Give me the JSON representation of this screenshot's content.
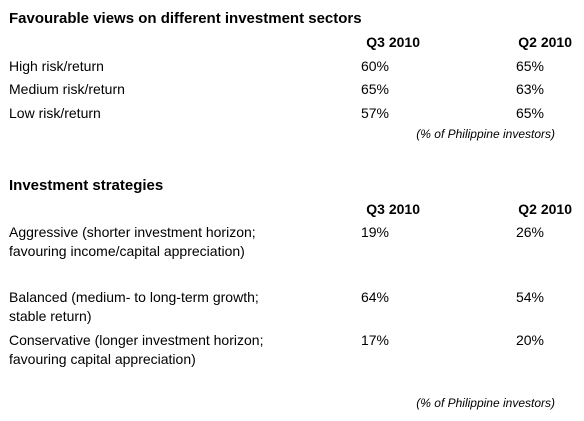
{
  "sections": [
    {
      "title": "Favourable views on different investment sectors",
      "columns": [
        "Q3 2010",
        "Q2 2010"
      ],
      "rows": [
        [
          "High risk/return",
          "60%",
          "65%"
        ],
        [
          "Medium risk/return",
          "65%",
          "63%"
        ],
        [
          "Low risk/return",
          "57%",
          "65%"
        ]
      ],
      "note": "(% of Philippine investors)"
    },
    {
      "title": "Investment strategies",
      "columns": [
        "Q3 2010",
        "Q2 2010"
      ],
      "rows": [
        [
          "Aggressive (shorter investment horizon; favouring income/capital appreciation)",
          "19%",
          "26%"
        ],
        [
          "Balanced (medium- to long-term growth; stable return)",
          "64%",
          "54%"
        ],
        [
          "Conservative (longer investment horizon; favouring capital appreciation)",
          "17%",
          "20%"
        ]
      ],
      "note": "(% of Philippine investors)"
    }
  ]
}
